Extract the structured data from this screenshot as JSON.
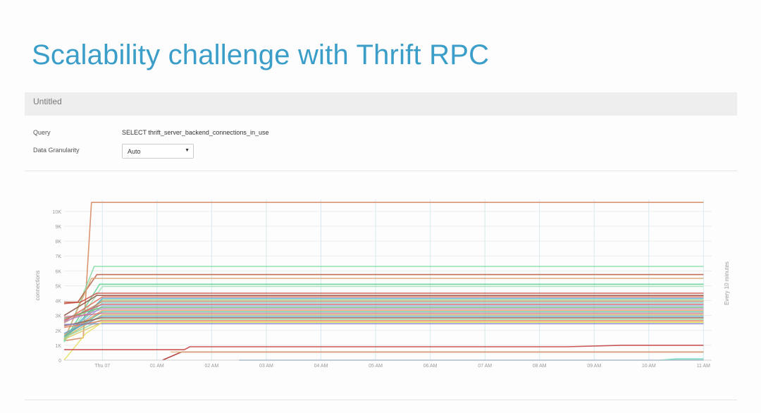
{
  "slide": {
    "title": "Scalability challenge with Thrift RPC"
  },
  "panel": {
    "title": "Untitled",
    "query_label": "Query",
    "query_value": "SELECT thrift_server_backend_connections_in_use",
    "granularity_label": "Data Granularity",
    "granularity_value": "Auto"
  },
  "chart_data": {
    "type": "line",
    "ylabel": "connections",
    "right_label": "Every 10 minutes",
    "y_ticks": [
      0,
      1000,
      2000,
      3000,
      4000,
      5000,
      6000,
      7000,
      8000,
      9000,
      10000
    ],
    "y_tick_labels": [
      "0",
      "1K",
      "2K",
      "3K",
      "4K",
      "5K",
      "6K",
      "7K",
      "8K",
      "9K",
      "10K"
    ],
    "x_ticks": [
      "Thu 07",
      "01 AM",
      "02 AM",
      "03 AM",
      "04 AM",
      "05 AM",
      "06 AM",
      "07 AM",
      "08 AM",
      "09 AM",
      "10 AM",
      "11 AM"
    ],
    "x_tick_hours": [
      0,
      1,
      2,
      3,
      4,
      5,
      6,
      7,
      8,
      9,
      10,
      11
    ],
    "xlim_hours": [
      -0.7,
      11.15
    ],
    "ylim": [
      0,
      10800
    ],
    "grid": true,
    "series_summary": "many series; most ramp from about 1.3K-3.8K to a plateau at about 2.5K-4.4K by Thu 07 and stay flat; outliers plateau near 10.6K, 6.3K, 5.7K, 5.0K; a few stay low near 700-1000",
    "series": [
      {
        "color": "#d4845a",
        "values": [
          [
            -0.7,
            1300
          ],
          [
            -0.35,
            1500
          ],
          [
            -0.2,
            10600
          ],
          [
            11,
            10600
          ]
        ]
      },
      {
        "color": "#7fdca4",
        "values": [
          [
            -0.7,
            1250
          ],
          [
            -0.15,
            6300
          ],
          [
            11,
            6300
          ]
        ]
      },
      {
        "color": "#b5553a",
        "values": [
          [
            -0.7,
            3900
          ],
          [
            -0.45,
            3900
          ],
          [
            -0.1,
            5750
          ],
          [
            11,
            5750
          ]
        ]
      },
      {
        "color": "#d9a676",
        "values": [
          [
            -0.7,
            1400
          ],
          [
            -0.2,
            5500
          ],
          [
            11,
            5500
          ]
        ]
      },
      {
        "color": "#59d08f",
        "values": [
          [
            -0.7,
            1300
          ],
          [
            -0.05,
            5100
          ],
          [
            11,
            5100
          ]
        ]
      },
      {
        "color": "#a3e2b8",
        "values": [
          [
            -0.7,
            1200
          ],
          [
            0,
            4950
          ],
          [
            11,
            4950
          ]
        ]
      },
      {
        "color": "#c94a3f",
        "values": [
          [
            -0.7,
            3800
          ],
          [
            -0.4,
            3900
          ],
          [
            -0.1,
            4500
          ],
          [
            11,
            4500
          ]
        ]
      },
      {
        "color": "#8d4b3b",
        "values": [
          [
            -0.7,
            3000
          ],
          [
            -0.1,
            4350
          ],
          [
            11,
            4350
          ]
        ]
      },
      {
        "color": "#e06a55",
        "values": [
          [
            -0.7,
            2600
          ],
          [
            0,
            4250
          ],
          [
            11,
            4250
          ]
        ]
      },
      {
        "color": "#4fa8d8",
        "values": [
          [
            -0.7,
            1500
          ],
          [
            0,
            4150
          ],
          [
            11,
            4150
          ]
        ]
      },
      {
        "color": "#9fd27a",
        "values": [
          [
            -0.7,
            1400
          ],
          [
            0,
            4050
          ],
          [
            11,
            4050
          ]
        ]
      },
      {
        "color": "#c8876a",
        "values": [
          [
            -0.7,
            2500
          ],
          [
            0,
            3950
          ],
          [
            11,
            3950
          ]
        ]
      },
      {
        "color": "#7bcfc8",
        "values": [
          [
            -0.7,
            1600
          ],
          [
            0,
            3850
          ],
          [
            11,
            3850
          ]
        ]
      },
      {
        "color": "#d45c6a",
        "values": [
          [
            -0.7,
            2700
          ],
          [
            0,
            3750
          ],
          [
            11,
            3750
          ]
        ]
      },
      {
        "color": "#88b9e0",
        "values": [
          [
            -0.7,
            1500
          ],
          [
            0,
            3650
          ],
          [
            11,
            3650
          ]
        ]
      },
      {
        "color": "#6db86d",
        "values": [
          [
            -0.7,
            2800
          ],
          [
            0,
            3550
          ],
          [
            11,
            3550
          ]
        ]
      },
      {
        "color": "#b58ac9",
        "values": [
          [
            -0.7,
            2600
          ],
          [
            0,
            3450
          ],
          [
            11,
            3450
          ]
        ]
      },
      {
        "color": "#e29a5c",
        "values": [
          [
            -0.7,
            1700
          ],
          [
            0,
            3350
          ],
          [
            11,
            3350
          ]
        ]
      },
      {
        "color": "#57b8a0",
        "values": [
          [
            -0.7,
            1600
          ],
          [
            0,
            3250
          ],
          [
            11,
            3250
          ]
        ]
      },
      {
        "color": "#d66d8a",
        "values": [
          [
            -0.7,
            2900
          ],
          [
            0,
            3150
          ],
          [
            11,
            3150
          ]
        ]
      },
      {
        "color": "#c9b35a",
        "values": [
          [
            -0.7,
            1500
          ],
          [
            0,
            3050
          ],
          [
            11,
            3050
          ]
        ]
      },
      {
        "color": "#5aa5d0",
        "values": [
          [
            -0.7,
            1800
          ],
          [
            0,
            2950
          ],
          [
            11,
            2950
          ]
        ]
      },
      {
        "color": "#9a5a4a",
        "values": [
          [
            -0.7,
            2300
          ],
          [
            0,
            2850
          ],
          [
            11,
            2850
          ]
        ]
      },
      {
        "color": "#8fd6a0",
        "values": [
          [
            -0.7,
            1500
          ],
          [
            0,
            2750
          ],
          [
            11,
            2750
          ]
        ]
      },
      {
        "color": "#e07a5a",
        "values": [
          [
            -0.7,
            2200
          ],
          [
            0,
            2650
          ],
          [
            11,
            2650
          ]
        ]
      },
      {
        "color": "#dcc86a",
        "values": [
          [
            -0.7,
            1400
          ],
          [
            0,
            2550
          ],
          [
            11,
            2550
          ]
        ]
      },
      {
        "color": "#8080c8",
        "values": [
          [
            -0.7,
            2400
          ],
          [
            0,
            2450
          ],
          [
            11,
            2450
          ]
        ]
      },
      {
        "color": "#e8e060",
        "values": [
          [
            -0.7,
            0
          ],
          [
            -0.5,
            900
          ],
          [
            -0.3,
            1800
          ],
          [
            0,
            2550
          ],
          [
            11,
            2550
          ]
        ]
      },
      {
        "color": "#c33a3a",
        "values": [
          [
            -0.7,
            700
          ],
          [
            1.5,
            700
          ],
          [
            1.6,
            900
          ],
          [
            6,
            900
          ],
          [
            8.5,
            900
          ],
          [
            9.5,
            1000
          ],
          [
            11,
            1000
          ]
        ]
      },
      {
        "color": "#a8261f",
        "values": [
          [
            1.1,
            0
          ],
          [
            1.45,
            550
          ],
          [
            11,
            550
          ]
        ]
      },
      {
        "color": "#e4b48a",
        "values": [
          [
            1.25,
            550
          ],
          [
            11,
            550
          ]
        ]
      },
      {
        "color": "#4b7fb0",
        "values": [
          [
            2.5,
            0
          ],
          [
            11,
            0
          ]
        ]
      },
      {
        "color": "#5fd1b8",
        "values": [
          [
            10.2,
            0
          ],
          [
            10.5,
            80
          ],
          [
            11,
            80
          ]
        ]
      }
    ]
  }
}
